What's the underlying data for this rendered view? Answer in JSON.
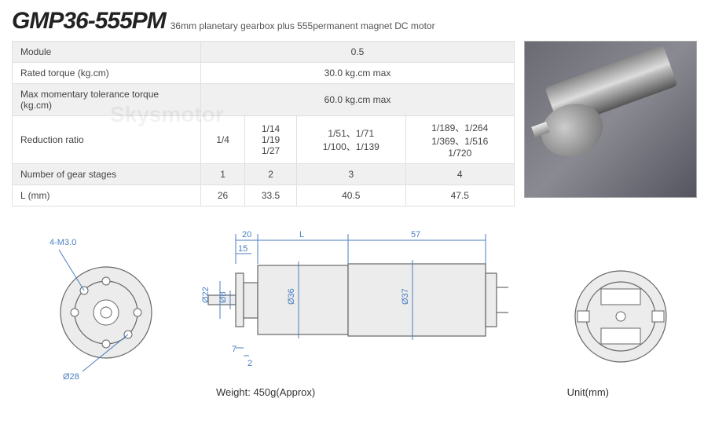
{
  "header": {
    "title": "GMP36-555PM",
    "subtitle": "36mm planetary gearbox plus 555permanent magnet DC  motor"
  },
  "specs": {
    "rows": [
      {
        "label": "Module",
        "values": [
          "0.5"
        ],
        "span": 4
      },
      {
        "label": "Rated torque (kg.cm)",
        "values": [
          "30.0 kg.cm max"
        ],
        "span": 4
      },
      {
        "label": "Max momentary tolerance torque (kg.cm)",
        "values": [
          "60.0 kg.cm max"
        ],
        "span": 4
      },
      {
        "label": "Reduction ratio",
        "values": [
          "1/4",
          "1/14\n1/19\n1/27",
          "1/51、1/71\n1/100、1/139",
          "1/189、1/264\n1/369、1/516\n1/720"
        ],
        "span": 1
      },
      {
        "label": "Number of gear stages",
        "values": [
          "1",
          "2",
          "3",
          "4"
        ],
        "span": 1
      },
      {
        "label": "L (mm)",
        "values": [
          "26",
          "33.5",
          "40.5",
          "47.5"
        ],
        "span": 1
      }
    ]
  },
  "drawing": {
    "front_view": {
      "hole_callout": "4-M3.0",
      "pcd": "Ø28"
    },
    "side_view": {
      "dims": {
        "d1": "20",
        "d2": "L",
        "d3": "57",
        "d4": "15",
        "d5": "Ø22",
        "d6": "Ø8",
        "d7": "Ø36",
        "d8": "Ø37",
        "d9": "7",
        "d10": "2"
      }
    },
    "rear_view": {},
    "weight": "Weight: 450g(Approx)",
    "unit": "Unit(mm)"
  },
  "style": {
    "dim_color": "#4a7ec2",
    "body_fill": "#ececec",
    "body_stroke": "#666666",
    "row_alt_bg": "#f0f0f0"
  }
}
